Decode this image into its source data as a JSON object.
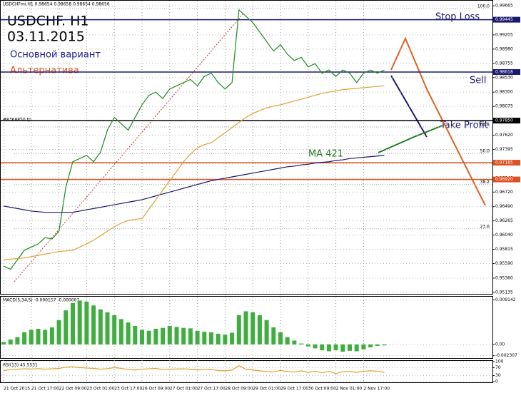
{
  "chart_data": [
    {
      "type": "line",
      "header": "USDCHFmi.H1 0.98654 0.98658 0.98654 0.98656",
      "title": "USDCHF. H1",
      "subtitle": "03.11.2015",
      "annotations": [
        "Основной вариант",
        "Альтернатива",
        "Stop Loss",
        "Sell",
        "Take Profit",
        "MA 421",
        "#8368850 tp"
      ],
      "categories": [
        "21 Oct 2015",
        null,
        null,
        null,
        "21 Oct 17:00",
        null,
        null,
        null,
        "22 Oct 09:00",
        null,
        null,
        null,
        "23 Oct 01:00",
        null,
        null,
        null,
        "23 Oct 17:00",
        null,
        null,
        null,
        "26 Oct 09:00",
        null,
        null,
        null,
        "27 Oct 01:00",
        null,
        null,
        null,
        "27 Oct 17:00",
        null,
        null,
        null,
        "28 Oct 09:00",
        null,
        null,
        null,
        "29 Oct 01:00",
        null,
        null,
        null,
        "29 Oct 17:00",
        null,
        null,
        null,
        "30 Oct 09:00",
        null,
        null,
        null,
        "2 Nov 01:00",
        null,
        null,
        null,
        "2 Nov 17:00",
        null,
        null,
        null
      ],
      "series": [
        {
          "name": "USDCHF",
          "color": "#1f8a1f",
          "values": [
            0.9555,
            0.955,
            0.9565,
            0.958,
            0.9585,
            0.959,
            0.96,
            0.9598,
            0.961,
            0.968,
            0.972,
            0.9725,
            0.973,
            0.972,
            0.9735,
            0.977,
            0.979,
            0.978,
            0.977,
            0.979,
            0.981,
            0.9825,
            0.983,
            0.982,
            0.9835,
            0.984,
            0.9845,
            0.985,
            0.984,
            0.9855,
            0.986,
            0.9845,
            0.9835,
            0.9845,
            0.996,
            0.995,
            0.994,
            0.9925,
            0.991,
            0.9895,
            0.9905,
            0.989,
            0.988,
            0.9885,
            0.987,
            0.9875,
            0.986,
            0.9865,
            0.9855,
            0.9865,
            0.986,
            0.9845,
            0.986,
            0.9865,
            0.986,
            0.9865
          ]
        },
        {
          "name": "MA 421",
          "color": "#1a1a6e",
          "values": [
            0.965,
            0.9648,
            0.9646,
            0.9644,
            0.9642,
            0.9641,
            0.964,
            0.964,
            0.964,
            0.964,
            0.964,
            0.9642,
            0.9644,
            0.9646,
            0.9648,
            0.965,
            0.9652,
            0.9654,
            0.9656,
            0.9658,
            0.966,
            0.9663,
            0.9666,
            0.9669,
            0.9672,
            0.9675,
            0.9678,
            0.9681,
            0.9684,
            0.9687,
            0.969,
            0.9692,
            0.9694,
            0.9696,
            0.9698,
            0.97,
            0.9702,
            0.9704,
            0.9706,
            0.9708,
            0.971,
            0.9712,
            0.9713,
            0.9715,
            0.9716,
            0.9718,
            0.9719,
            0.972,
            0.9722,
            0.9723,
            0.9725,
            0.9726,
            0.9727,
            0.9728,
            0.9729,
            0.973
          ]
        },
        {
          "name": "MA",
          "color": "#e0a030",
          "values": [
            0.9565,
            0.9566,
            0.9567,
            0.9568,
            0.957,
            0.9572,
            0.9574,
            0.9576,
            0.9578,
            0.9579,
            0.958,
            0.9585,
            0.959,
            0.9596,
            0.9603,
            0.961,
            0.9617,
            0.9623,
            0.9627,
            0.9629,
            0.963,
            0.9645,
            0.966,
            0.9675,
            0.969,
            0.9705,
            0.972,
            0.9732,
            0.9742,
            0.9747,
            0.975,
            0.9758,
            0.9766,
            0.9774,
            0.9782,
            0.979,
            0.9796,
            0.9801,
            0.9805,
            0.9808,
            0.981,
            0.9813,
            0.9816,
            0.9819,
            0.9822,
            0.9825,
            0.9828,
            0.983,
            0.9832,
            0.9834,
            0.9835,
            0.9836,
            0.9837,
            0.9838,
            0.9839,
            0.984
          ]
        }
      ],
      "ylim": [
        0.951,
        0.997
      ],
      "yticks": [
        0.99665,
        0.99445,
        0.99205,
        {
          "value": 0.9898,
          "label": "0.98980"
        },
        0.98755,
        {
          "value": 0.9853,
          "label": "0.98530"
        },
        {
          "value": 0.983,
          "label": "0.98300"
        },
        0.98075,
        {
          "value": 0.9785,
          "label": "0.97850"
        },
        {
          "value": 0.9762,
          "label": "0.97620"
        },
        0.97395,
        {
          "value": 0.9717,
          "label": "0.97170"
        },
        {
          "value": 0.9694,
          "label": "0.96940"
        },
        {
          "value": 0.9672,
          "label": "0.96720"
        },
        {
          "value": 0.9649,
          "label": "0.96490"
        },
        0.96265,
        {
          "value": 0.9604,
          "label": "0.96040"
        },
        0.95815,
        {
          "value": 0.9559,
          "label": "0.95590"
        },
        {
          "value": 0.9536,
          "label": "0.95360"
        },
        0.95135
      ],
      "levels": [
        {
          "value": 0.99445,
          "label": "0.99445",
          "color": "#1a1a6e"
        },
        {
          "value": 0.98618,
          "label": "0.98618",
          "color": "#1a1a6e"
        },
        {
          "value": 0.9785,
          "label": "0.97850",
          "color": "#000000"
        },
        {
          "value": 0.97185,
          "label": "0.97185",
          "color": "#e05020"
        },
        {
          "value": 0.9692,
          "label": "0.96920",
          "color": "#e05020"
        }
      ],
      "fib_levels": [
        {
          "value": 0.9962,
          "label": "100.0"
        },
        {
          "value": 0.9775,
          "label": "61.8"
        },
        {
          "value": 0.9733,
          "label": "50.0"
        },
        {
          "value": 0.9684,
          "label": "38.2"
        },
        {
          "value": 0.9614,
          "label": "23.6"
        }
      ],
      "grid": true
    },
    {
      "type": "bar",
      "title": "MACD(5,34,5) -0.000157 -0.000007",
      "color": "#3fae3f",
      "values": [
        0.0005,
        0.001,
        0.0015,
        0.0025,
        0.003,
        0.0032,
        0.003,
        0.0035,
        0.005,
        0.007,
        0.0085,
        0.009,
        0.0088,
        0.008,
        0.0072,
        0.0066,
        0.006,
        0.0052,
        0.0045,
        0.0038,
        0.003,
        0.0028,
        0.0032,
        0.0034,
        0.0038,
        0.0036,
        0.0034,
        0.0033,
        0.0028,
        0.0026,
        0.0025,
        0.0022,
        0.002,
        0.0024,
        0.006,
        0.0068,
        0.0066,
        0.006,
        0.005,
        0.0035,
        0.0025,
        0.0015,
        0.0008,
        0.0002,
        -0.0004,
        -0.0008,
        -0.0012,
        -0.0014,
        -0.0012,
        -0.0015,
        -0.0013,
        -0.0014,
        -0.001,
        -0.0006,
        -0.0003,
        -0.0002
      ],
      "ylim": [
        -0.0025,
        0.0095
      ],
      "yticks": [
        0.009142,
        {
          "value": 0,
          "label": "0.00"
        },
        -0.002307
      ],
      "grid": true
    },
    {
      "type": "line",
      "title": "RSI(13) 45.5531",
      "color": "#e0a030",
      "values": [
        55,
        60,
        62,
        64,
        63,
        65,
        62,
        64,
        66,
        72,
        74,
        70,
        68,
        66,
        62,
        65,
        70,
        66,
        60,
        58,
        62,
        64,
        66,
        60,
        62,
        63,
        64,
        62,
        58,
        60,
        61,
        55,
        54,
        58,
        80,
        62,
        58,
        54,
        50,
        48,
        56,
        50,
        48,
        54,
        46,
        52,
        44,
        52,
        40,
        50,
        50,
        46,
        52,
        54,
        52,
        46
      ],
      "ylim": [
        0,
        100
      ],
      "yticks": [
        100,
        70,
        30,
        0
      ],
      "grid": true
    }
  ]
}
